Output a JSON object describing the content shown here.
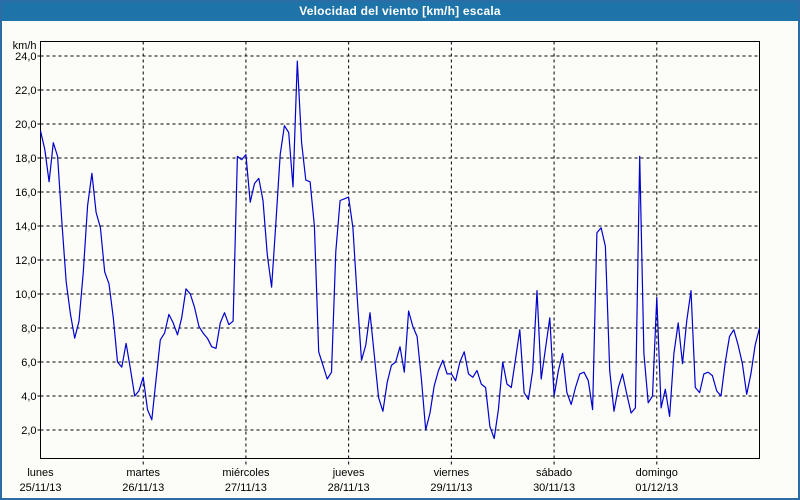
{
  "window": {
    "title": "Velocidad del viento [km/h] escala"
  },
  "colors": {
    "titlebar": "#1e74a9",
    "frame_border": "#2a6da4",
    "background": "#fcfdf8",
    "grid": "#000000",
    "text": "#000000",
    "series_line": "#0000cc"
  },
  "chart_data": {
    "type": "line",
    "title": "Velocidad del viento [km/h] escala",
    "ylabel": "km/h",
    "xlabel": "",
    "ylim": [
      0.3,
      24.9
    ],
    "grid": "dashed",
    "legend": "none",
    "y_tick_values": [
      24,
      22,
      20,
      18,
      16,
      14,
      12,
      10,
      8,
      6,
      4,
      2
    ],
    "y_tick_labels": [
      "24,0",
      "22,0",
      "20,0",
      "18,0",
      "16,0",
      "14,0",
      "12,0",
      "10,0",
      "8,0",
      "6,0",
      "4,0",
      "2,0"
    ],
    "x_days": [
      {
        "name": "lunes",
        "date": "25/11/13"
      },
      {
        "name": "martes",
        "date": "26/11/13"
      },
      {
        "name": "miércoles",
        "date": "27/11/13"
      },
      {
        "name": "jueves",
        "date": "28/11/13"
      },
      {
        "name": "viernes",
        "date": "29/11/13"
      },
      {
        "name": "sábado",
        "date": "30/11/13"
      },
      {
        "name": "domingo",
        "date": "01/12/13"
      }
    ],
    "sampling": "hourly, 7 days (169 points)",
    "series": [
      {
        "name": "Velocidad del viento (km/h)",
        "values": [
          19.6,
          18.5,
          16.6,
          18.9,
          18.1,
          14.2,
          10.7,
          8.8,
          7.4,
          8.4,
          11.3,
          15.2,
          17.1,
          14.8,
          13.9,
          11.3,
          10.6,
          8.6,
          6.0,
          5.7,
          7.1,
          5.6,
          4.0,
          4.3,
          5.1,
          3.2,
          2.6,
          5.0,
          7.3,
          7.7,
          8.8,
          8.3,
          7.6,
          8.6,
          10.3,
          10.0,
          9.2,
          8.1,
          7.7,
          7.4,
          6.9,
          6.8,
          8.3,
          8.9,
          8.2,
          8.4,
          18.1,
          17.9,
          18.2,
          15.4,
          16.5,
          16.8,
          15.5,
          12.3,
          10.4,
          14.2,
          18.2,
          19.9,
          19.5,
          16.3,
          23.7,
          18.9,
          16.7,
          16.6,
          14.0,
          6.6,
          5.8,
          5.0,
          5.4,
          12.5,
          15.5,
          15.6,
          15.7,
          13.9,
          9.8,
          6.1,
          7.0,
          8.9,
          6.4,
          3.9,
          3.1,
          4.8,
          5.8,
          6.0,
          6.9,
          5.4,
          9.0,
          8.1,
          7.5,
          5.0,
          2.0,
          3.0,
          4.6,
          5.5,
          6.1,
          5.3,
          5.3,
          4.9,
          6.0,
          6.6,
          5.3,
          5.1,
          5.5,
          4.7,
          4.5,
          2.2,
          1.5,
          3.2,
          6.0,
          4.7,
          4.5,
          6.2,
          7.9,
          4.2,
          3.8,
          5.5,
          10.2,
          5.0,
          6.8,
          8.6,
          4.0,
          5.5,
          6.5,
          4.2,
          3.5,
          4.5,
          5.3,
          5.4,
          4.9,
          3.2,
          13.6,
          13.9,
          12.8,
          5.5,
          3.1,
          4.5,
          5.3,
          4.1,
          3.0,
          3.3,
          18.1,
          6.5,
          3.6,
          4.0,
          9.8,
          3.3,
          4.4,
          2.8,
          6.5,
          8.3,
          5.9,
          8.4,
          10.2,
          4.5,
          4.2,
          5.3,
          5.4,
          5.2,
          4.3,
          4.0,
          6.0,
          7.5,
          7.9,
          7.0,
          5.9,
          4.1,
          5.3,
          7.0,
          8.0
        ]
      }
    ]
  }
}
